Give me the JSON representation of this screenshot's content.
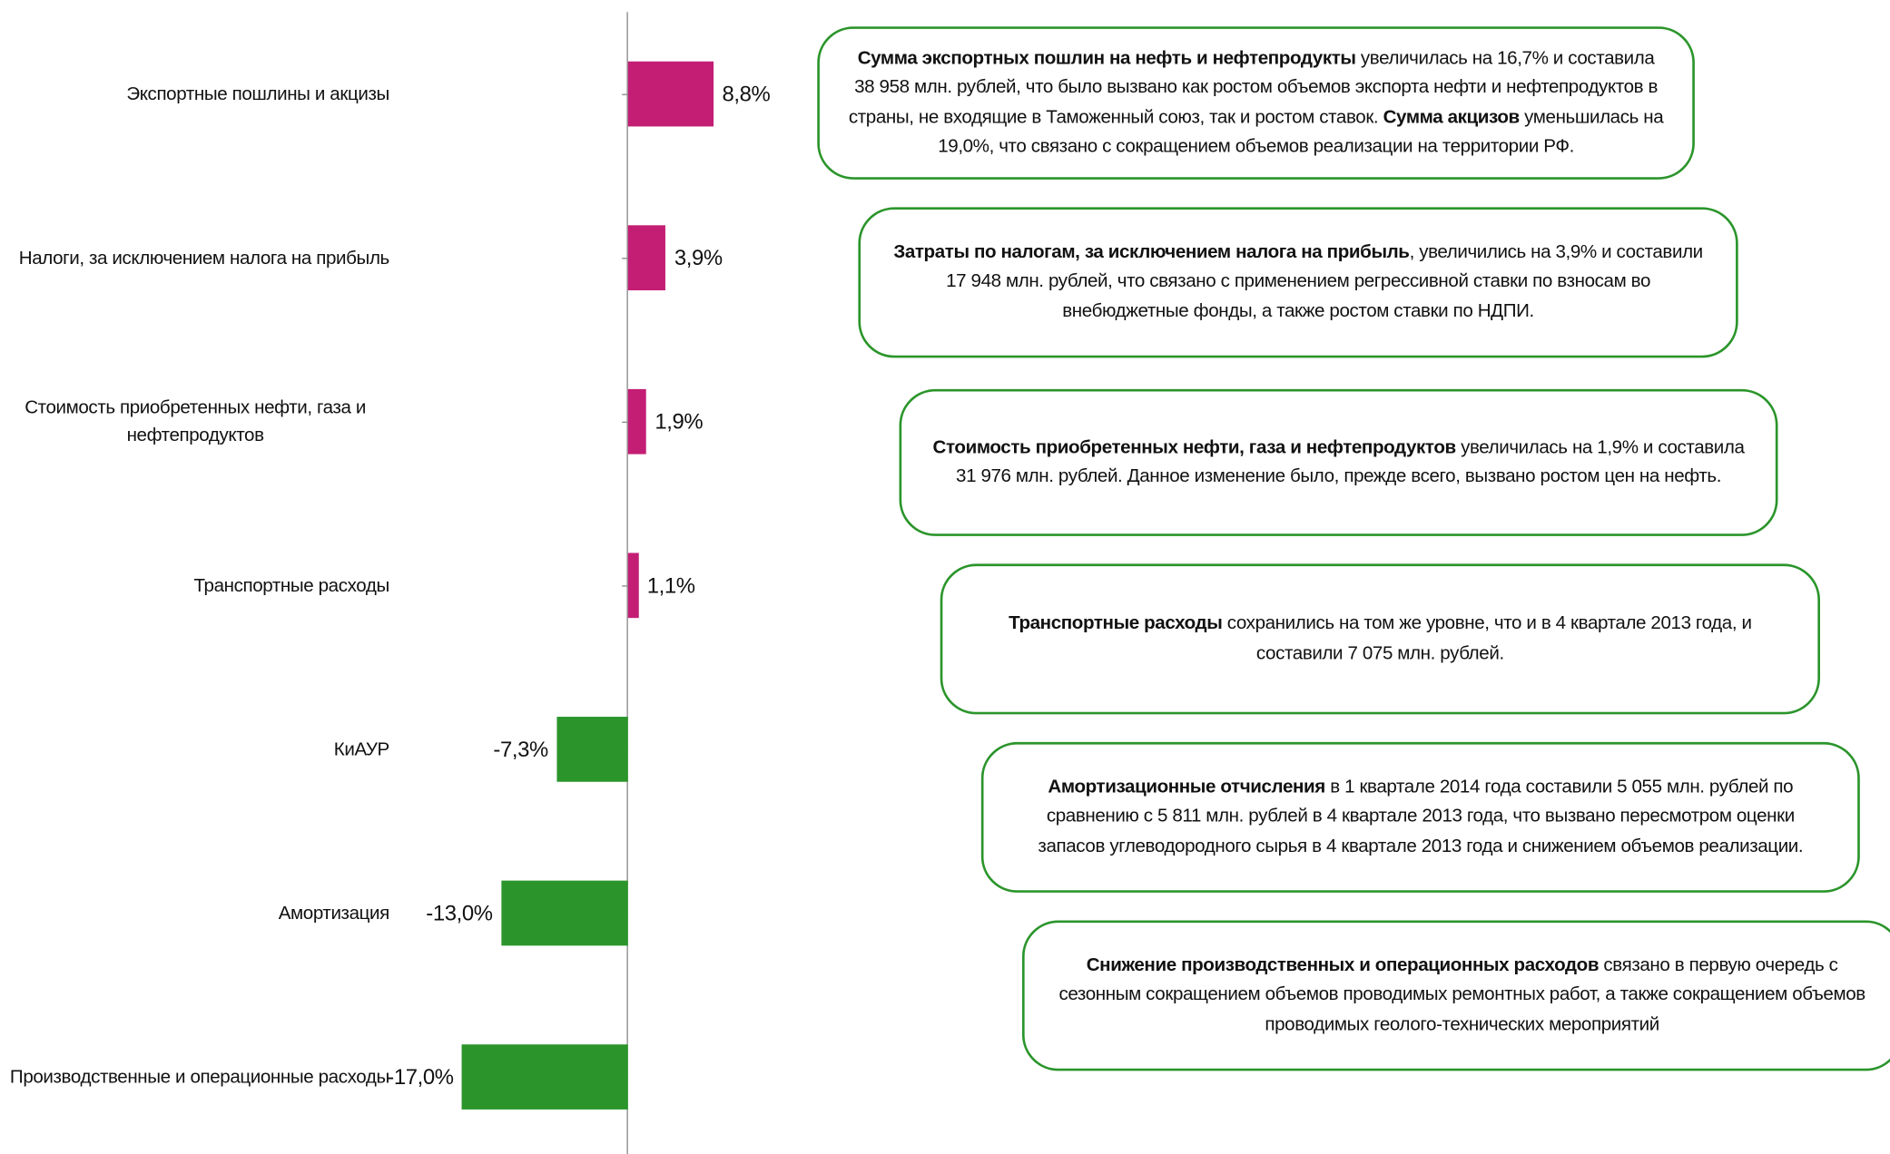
{
  "chart_data": {
    "type": "bar",
    "orientation": "horizontal",
    "categories": [
      "Экспортные пошлины и акцизы",
      "Налоги, за исключением налога на прибыль",
      "Стоимость приобретенных нефти, газа и нефтепродуктов",
      "Транспортные расходы",
      "КиАУР",
      "Амортизация",
      "Производственные и операционные расходы"
    ],
    "values": [
      8.8,
      3.9,
      1.9,
      1.1,
      -7.3,
      -13.0,
      -17.0
    ],
    "value_labels": [
      "8,8%",
      "3,9%",
      "1,9%",
      "1,1%",
      "-7,3%",
      "-13,0%",
      "-17,0%"
    ],
    "colors": [
      "#c41e74",
      "#c41e74",
      "#c41e74",
      "#c41e74",
      "#2b952b",
      "#2b952b",
      "#2b952b"
    ],
    "xlim": [
      -20,
      12
    ]
  },
  "annotations": [
    {
      "runs": [
        {
          "text": "Сумма экспортных пошлин на нефть и нефтепродукты",
          "bold": true
        },
        {
          "text": " увеличилась на 16,7% и составила 38 958 млн. рублей, что было вызвано как ростом объемов экспорта нефти и нефтепродуктов в страны, не входящие в Таможенный союз, так и ростом ставок. ",
          "bold": false
        },
        {
          "text": "Сумма акцизов",
          "bold": true
        },
        {
          "text": " уменьшилась на 19,0%, что связано с сокращением объемов реализации на территории РФ.",
          "bold": false
        }
      ]
    },
    {
      "runs": [
        {
          "text": "Затраты по налогам, за исключением налога на прибыль",
          "bold": true
        },
        {
          "text": ", увеличились на 3,9% и составили 17 948 млн. рублей, что связано с применением регрессивной ставки по взносам во внебюджетные фонды, а также ростом ставки по НДПИ.",
          "bold": false
        }
      ]
    },
    {
      "runs": [
        {
          "text": "Стоимость приобретенных нефти, газа и нефтепродуктов",
          "bold": true
        },
        {
          "text": " увеличилась на 1,9% и составила 31 976 млн. рублей. Данное изменение было, прежде всего, вызвано ростом цен на нефть.",
          "bold": false
        }
      ]
    },
    {
      "runs": [
        {
          "text": "Транспортные расходы",
          "bold": true
        },
        {
          "text": " сохранились на том же уровне, что и в 4 квартале 2013 года, и составили 7 075 млн. рублей.",
          "bold": false
        }
      ]
    },
    {
      "runs": [
        {
          "text": "Амортизационные отчисления",
          "bold": true
        },
        {
          "text": " в 1 квартале 2014 года составили 5 055 млн. рублей по сравнению с 5 811 млн. рублей в 4 квартале 2013 года, что вызвано пересмотром оценки запасов углеводородного сырья в 4 квартале 2013 года и снижением объемов реализации.",
          "bold": false
        }
      ]
    },
    {
      "runs": [
        {
          "text": "Снижение производственных и операционных расходов",
          "bold": true
        },
        {
          "text": " связано в первую очередь с сезонным сокращением объемов проводимых ремонтных работ, а также сокращением объемов проводимых геолого-технических мероприятий",
          "bold": false
        }
      ]
    }
  ]
}
